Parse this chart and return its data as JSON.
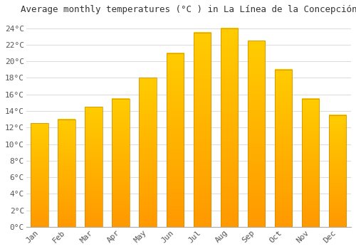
{
  "title": "Average monthly temperatures (°C ) in La Línea de la Concepción",
  "months": [
    "Jan",
    "Feb",
    "Mar",
    "Apr",
    "May",
    "Jun",
    "Jul",
    "Aug",
    "Sep",
    "Oct",
    "Nov",
    "Dec"
  ],
  "values": [
    12.5,
    13.0,
    14.5,
    15.5,
    18.0,
    21.0,
    23.5,
    24.0,
    22.5,
    19.0,
    15.5,
    13.5
  ],
  "bar_color_top": "#FFCC00",
  "bar_color_bottom": "#FF9900",
  "bar_edge_color": "#CC8800",
  "ylim": [
    0,
    25
  ],
  "yticks": [
    0,
    2,
    4,
    6,
    8,
    10,
    12,
    14,
    16,
    18,
    20,
    22,
    24
  ],
  "background_color": "#FFFFFF",
  "plot_bg_color": "#FFFFFF",
  "grid_color": "#DDDDDD",
  "title_fontsize": 9,
  "tick_fontsize": 8,
  "title_color": "#333333",
  "tick_color": "#555555"
}
